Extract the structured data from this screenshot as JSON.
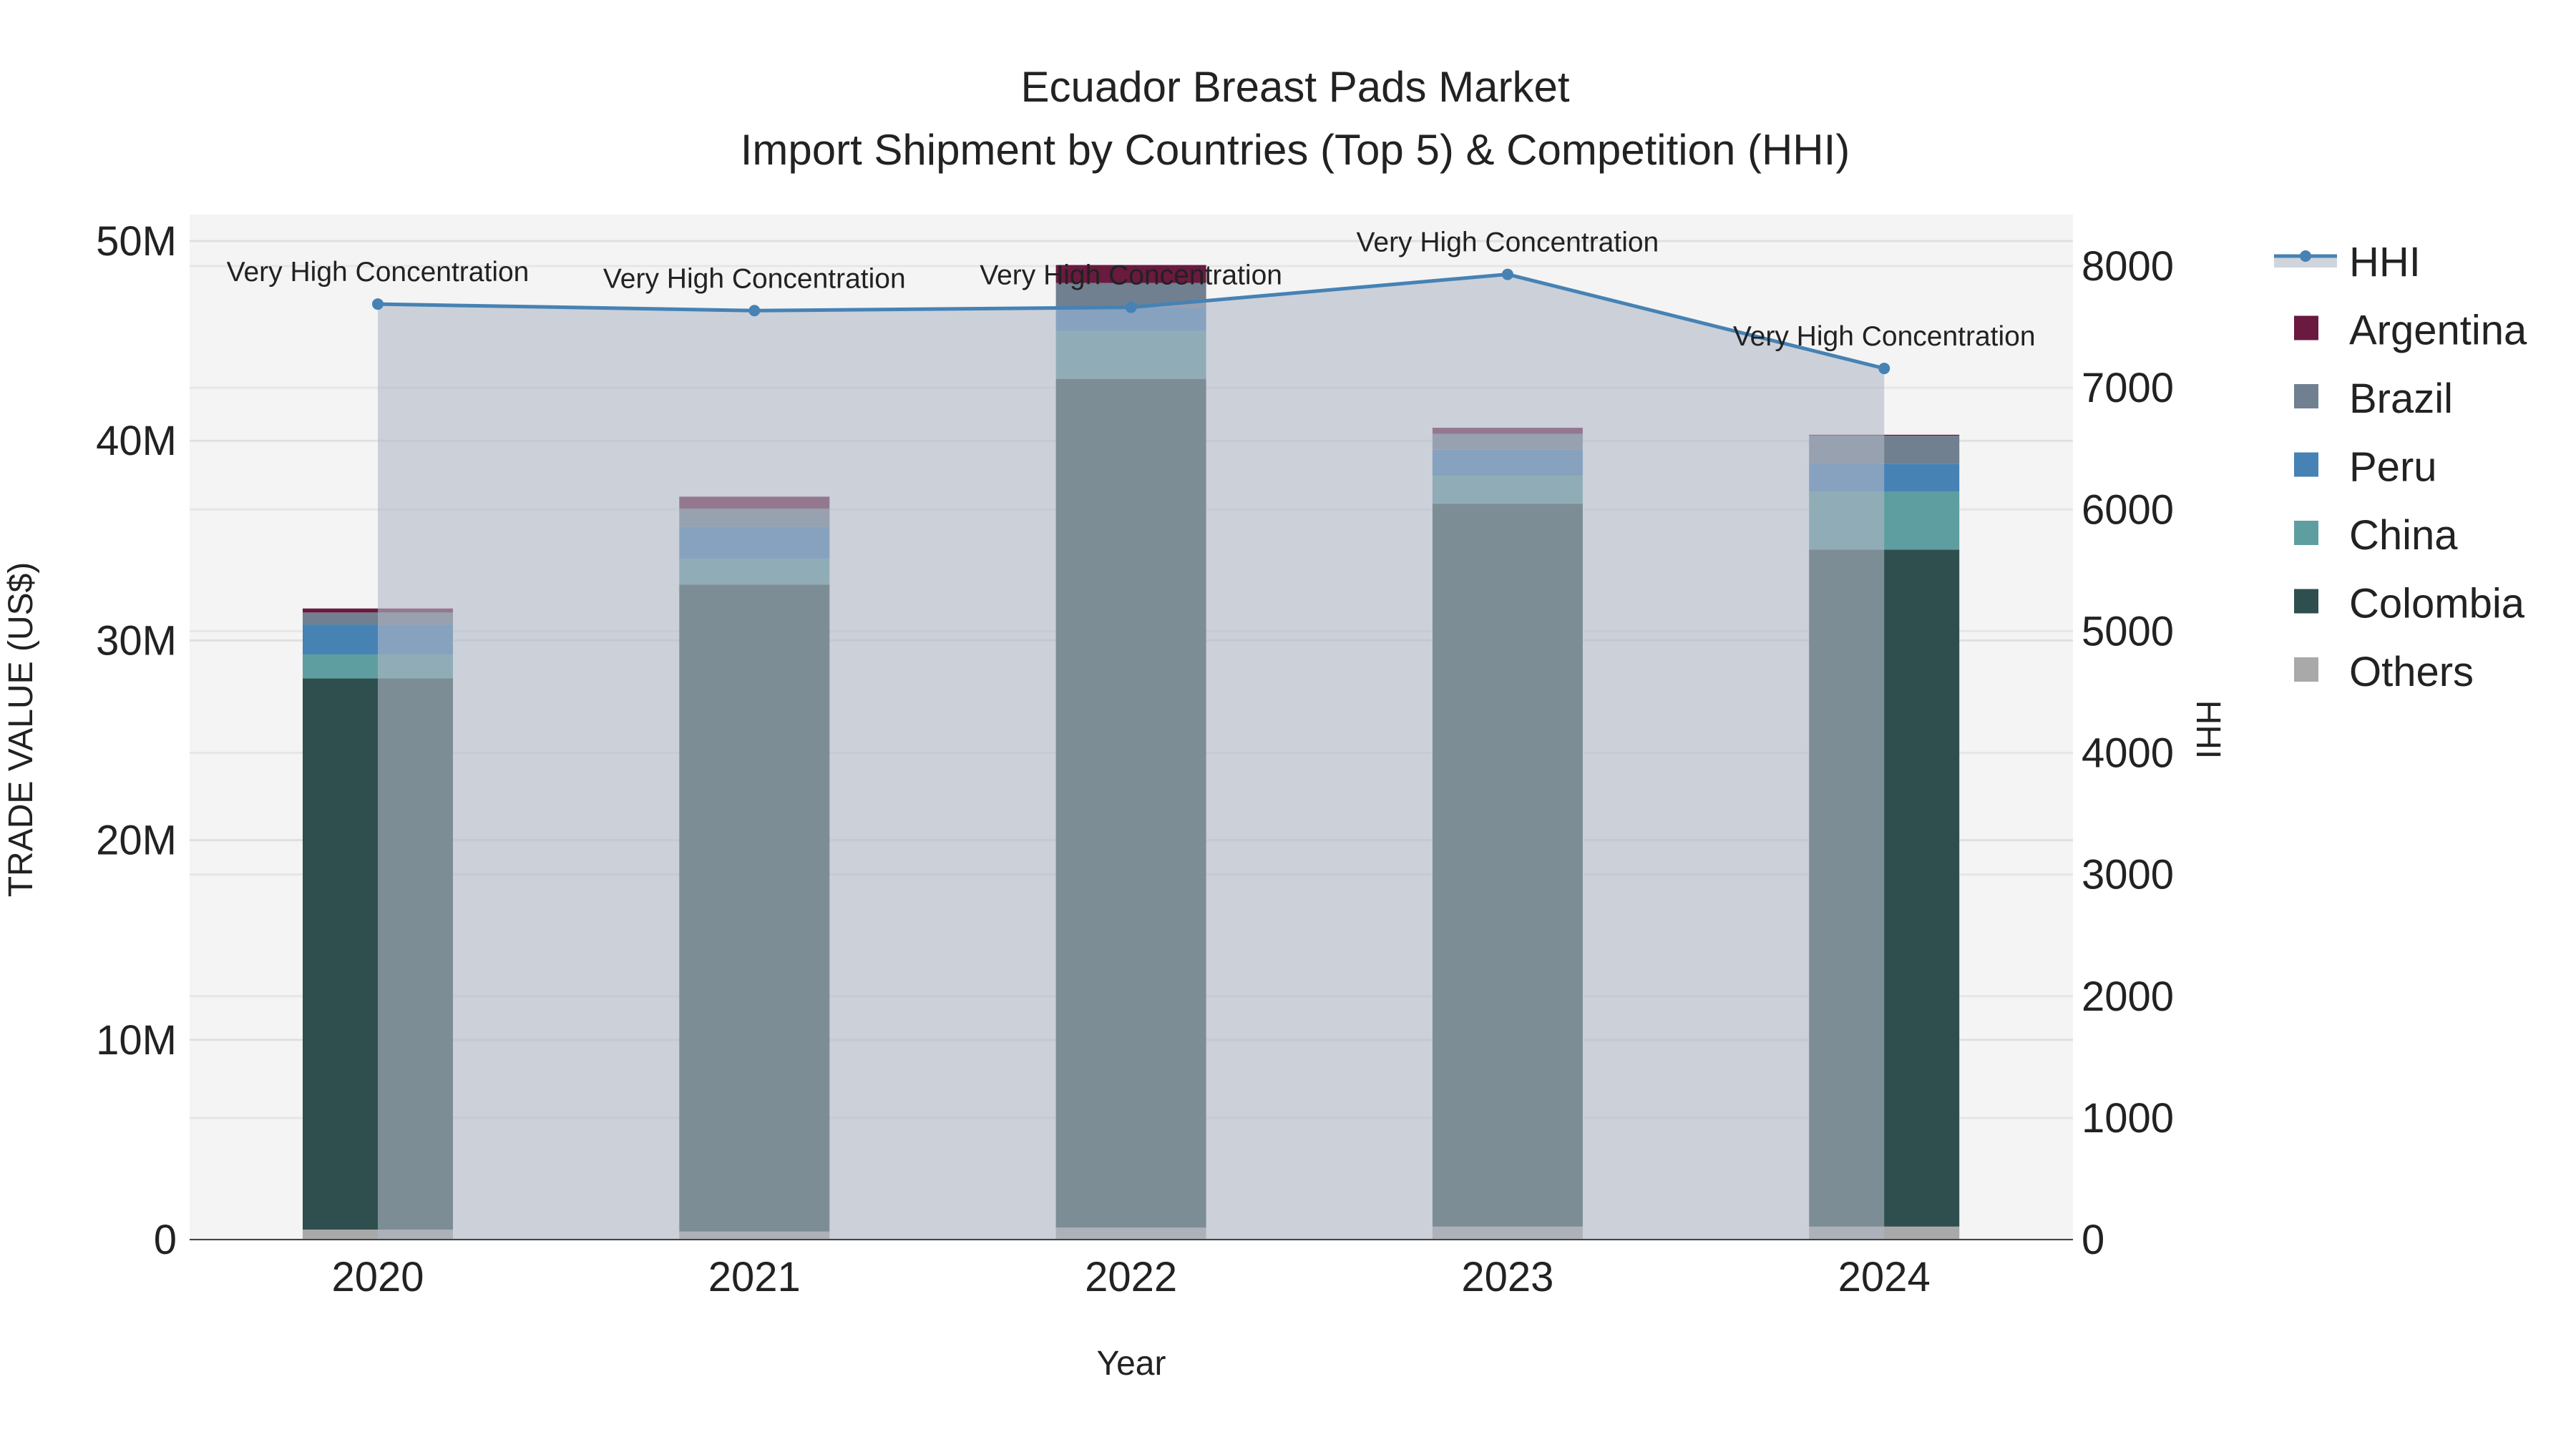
{
  "chart_data": {
    "type": "bar",
    "title": "Ecuador Breast Pads Market",
    "subtitle": "Import Shipment by Countries (Top 5) & Competition (HHI)",
    "xlabel": "Year",
    "ylabel": "TRADE VALUE (US$)",
    "y2label": "HHI",
    "categories": [
      "2020",
      "2021",
      "2022",
      "2023",
      "2024"
    ],
    "ylim": [
      0,
      50000000
    ],
    "yticks": [
      0,
      10000000,
      20000000,
      30000000,
      40000000,
      50000000
    ],
    "ytick_labels": [
      "0",
      "10M",
      "20M",
      "30M",
      "40M",
      "50M"
    ],
    "y2lim": [
      0,
      8000
    ],
    "y2ticks": [
      0,
      1000,
      2000,
      3000,
      4000,
      5000,
      6000,
      7000,
      8000
    ],
    "y2tick_labels": [
      "0",
      "1000",
      "2000",
      "3000",
      "4000",
      "5000",
      "6000",
      "7000",
      "8000"
    ],
    "stacked": true,
    "series": [
      {
        "name": "Others",
        "color": "#a9a9a9",
        "values": [
          500000,
          400000,
          600000,
          650000,
          650000
        ]
      },
      {
        "name": "Colombia",
        "color": "#2f4f4f",
        "values": [
          27600000,
          32400000,
          42500000,
          36200000,
          33900000
        ]
      },
      {
        "name": "China",
        "color": "#5f9ea0",
        "values": [
          1200000,
          1300000,
          2400000,
          1400000,
          2900000
        ]
      },
      {
        "name": "Peru",
        "color": "#4682b4",
        "values": [
          1500000,
          1600000,
          1200000,
          1300000,
          1400000
        ]
      },
      {
        "name": "Brazil",
        "color": "#708090",
        "values": [
          600000,
          900000,
          1200000,
          800000,
          1400000
        ]
      },
      {
        "name": "Argentina",
        "color": "#6a1a3f",
        "values": [
          200000,
          600000,
          900000,
          300000,
          50000
        ]
      }
    ],
    "line": {
      "name": "HHI",
      "color": "#4682b4",
      "values": [
        7688,
        7634,
        7661,
        7932,
        7159
      ]
    },
    "annotations": [
      "Very High Concentration",
      "Very High Concentration",
      "Very High Concentration",
      "Very High Concentration",
      "Very High Concentration"
    ],
    "legend": [
      "HHI",
      "Argentina",
      "Brazil",
      "Peru",
      "China",
      "Colombia",
      "Others"
    ],
    "legend_position": "right",
    "grid": true
  }
}
